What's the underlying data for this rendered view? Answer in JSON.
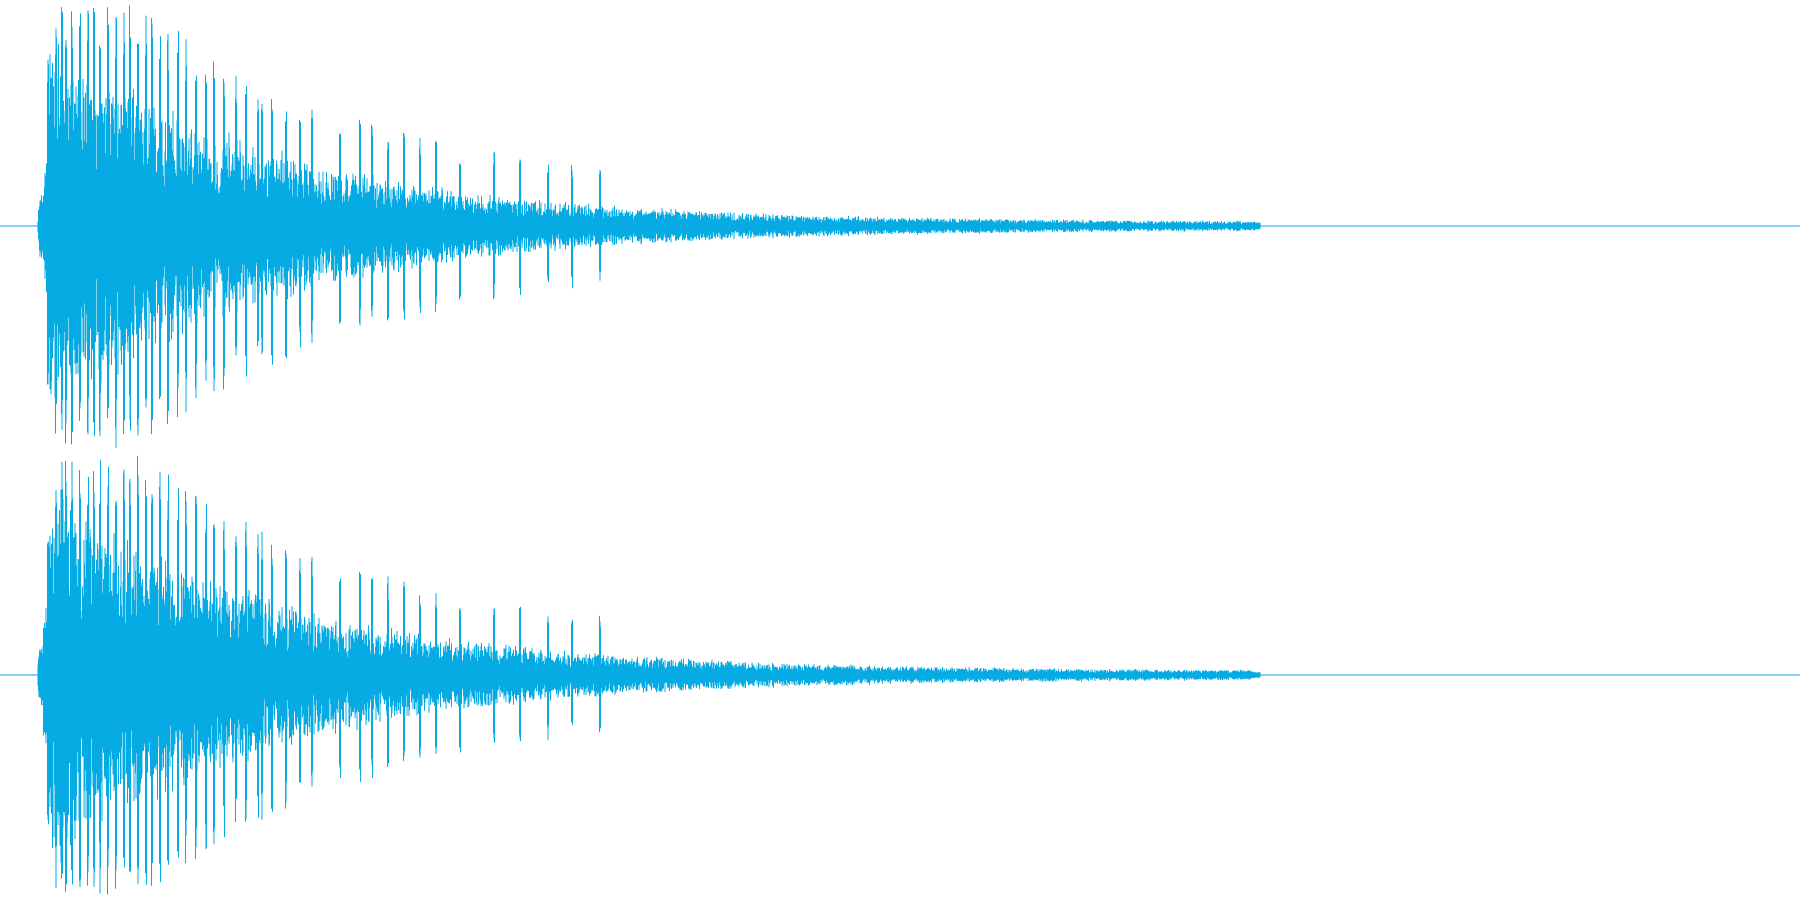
{
  "waveform": {
    "color": "#05abe2",
    "background": "#ffffff",
    "channels": [
      {
        "name": ""
      },
      {
        "name": ""
      }
    ]
  }
}
